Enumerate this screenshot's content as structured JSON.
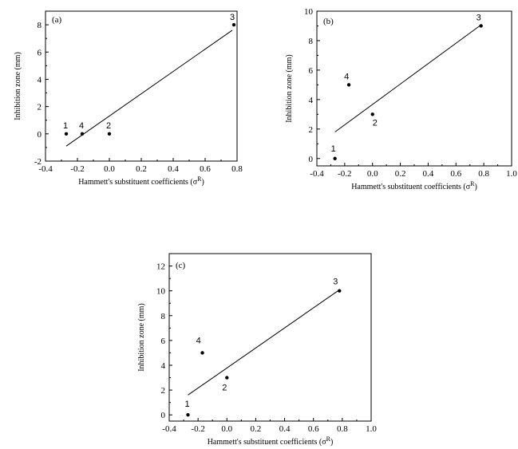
{
  "chart_data": [
    {
      "type": "scatter",
      "panel_label": "(a)",
      "xlabel": "Hammett's substituent coefficients (σ",
      "xlabel_sup": "R",
      "xlabel_tail": ")",
      "ylabel": "Inhibition zone (mm)",
      "xlim": [
        -0.4,
        0.8
      ],
      "ylim": [
        -2,
        9
      ],
      "xticks": [
        "-0.4",
        "-0.2",
        "0.0",
        "0.2",
        "0.4",
        "0.6",
        "0.8"
      ],
      "yticks": [
        "-2",
        "0",
        "2",
        "4",
        "6",
        "8"
      ],
      "xtick_values": [
        -0.4,
        -0.2,
        0.0,
        0.2,
        0.4,
        0.6,
        0.8
      ],
      "ytick_values": [
        -2,
        0,
        2,
        4,
        6,
        8
      ],
      "points": [
        {
          "label": "1",
          "x": -0.27,
          "y": 0
        },
        {
          "label": "4",
          "x": -0.17,
          "y": 0
        },
        {
          "label": "2",
          "x": 0.0,
          "y": 0
        },
        {
          "label": "3",
          "x": 0.78,
          "y": 8
        }
      ],
      "fit": {
        "x1": -0.27,
        "y1": -0.9,
        "x2": 0.77,
        "y2": 7.6
      }
    },
    {
      "type": "scatter",
      "panel_label": "(b)",
      "xlabel": "Hammett's substituent coefficients (σ",
      "xlabel_sup": "R",
      "xlabel_tail": ")",
      "ylabel": "Inhibition zone (mm)",
      "xlim": [
        -0.4,
        1.0
      ],
      "ylim": [
        -0.5,
        10
      ],
      "xticks": [
        "-0.4",
        "-0.2",
        "0.0",
        "0.2",
        "0.4",
        "0.6",
        "0.8",
        "1.0"
      ],
      "yticks": [
        "0",
        "2",
        "4",
        "6",
        "8",
        "10"
      ],
      "xtick_values": [
        -0.4,
        -0.2,
        0.0,
        0.2,
        0.4,
        0.6,
        0.8,
        1.0
      ],
      "ytick_values": [
        0,
        2,
        4,
        6,
        8,
        10
      ],
      "points": [
        {
          "label": "1",
          "x": -0.27,
          "y": 0
        },
        {
          "label": "4",
          "x": -0.17,
          "y": 5
        },
        {
          "label": "2",
          "x": 0.0,
          "y": 3
        },
        {
          "label": "3",
          "x": 0.78,
          "y": 9
        }
      ],
      "fit": {
        "x1": -0.27,
        "y1": 1.8,
        "x2": 0.77,
        "y2": 9.0
      }
    },
    {
      "type": "scatter",
      "panel_label": "(c)",
      "xlabel": "Hammett's substituent coefficients (σ",
      "xlabel_sup": "R",
      "xlabel_tail": ")",
      "ylabel": "Inhibition zone (mm)",
      "xlim": [
        -0.4,
        1.0
      ],
      "ylim": [
        -0.5,
        13
      ],
      "xticks": [
        "-0.4",
        "-0.2",
        "0.0",
        "0.2",
        "0.4",
        "0.6",
        "0.8",
        "1.0"
      ],
      "yticks": [
        "0",
        "2",
        "4",
        "6",
        "8",
        "10",
        "12"
      ],
      "xtick_values": [
        -0.4,
        -0.2,
        0.0,
        0.2,
        0.4,
        0.6,
        0.8,
        1.0
      ],
      "ytick_values": [
        0,
        2,
        4,
        6,
        8,
        10,
        12
      ],
      "points": [
        {
          "label": "1",
          "x": -0.27,
          "y": 0
        },
        {
          "label": "4",
          "x": -0.17,
          "y": 5
        },
        {
          "label": "2",
          "x": 0.0,
          "y": 3
        },
        {
          "label": "3",
          "x": 0.78,
          "y": 10
        }
      ],
      "fit": {
        "x1": -0.27,
        "y1": 1.6,
        "x2": 0.77,
        "y2": 10.0
      }
    }
  ]
}
